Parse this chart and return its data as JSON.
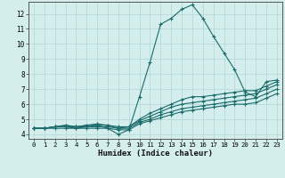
{
  "xlabel": "Humidex (Indice chaleur)",
  "xlim": [
    -0.5,
    23.5
  ],
  "ylim": [
    3.7,
    12.8
  ],
  "xticks": [
    0,
    1,
    2,
    3,
    4,
    5,
    6,
    7,
    8,
    9,
    10,
    11,
    12,
    13,
    14,
    15,
    16,
    17,
    18,
    19,
    20,
    21,
    22,
    23
  ],
  "yticks": [
    4,
    5,
    6,
    7,
    8,
    9,
    10,
    11,
    12
  ],
  "bg_color": "#d4eeed",
  "grid_color": "#b8d8d8",
  "line_color": "#1a6b6b",
  "curves": [
    {
      "x": [
        0,
        1,
        2,
        3,
        4,
        5,
        6,
        7,
        8,
        9,
        10,
        11,
        12,
        13,
        14,
        15,
        16,
        17,
        18,
        19,
        20,
        21,
        22,
        23
      ],
      "y": [
        4.4,
        4.4,
        4.5,
        4.6,
        4.5,
        4.6,
        4.6,
        4.4,
        4.0,
        4.3,
        6.5,
        8.8,
        11.3,
        11.7,
        12.3,
        12.6,
        11.7,
        10.5,
        9.4,
        8.3,
        6.8,
        6.5,
        7.5,
        7.6
      ]
    },
    {
      "x": [
        0,
        1,
        2,
        3,
        4,
        5,
        6,
        7,
        8,
        9,
        10,
        11,
        12,
        13,
        14,
        15,
        16,
        17,
        18,
        19,
        20,
        21,
        22,
        23
      ],
      "y": [
        4.4,
        4.4,
        4.5,
        4.6,
        4.5,
        4.6,
        4.7,
        4.6,
        4.4,
        4.5,
        5.0,
        5.4,
        5.7,
        6.0,
        6.3,
        6.5,
        6.5,
        6.6,
        6.7,
        6.8,
        6.9,
        6.9,
        7.2,
        7.5
      ]
    },
    {
      "x": [
        0,
        1,
        2,
        3,
        4,
        5,
        6,
        7,
        8,
        9,
        10,
        11,
        12,
        13,
        14,
        15,
        16,
        17,
        18,
        19,
        20,
        21,
        22,
        23
      ],
      "y": [
        4.4,
        4.4,
        4.5,
        4.5,
        4.5,
        4.5,
        4.6,
        4.6,
        4.5,
        4.5,
        4.9,
        5.2,
        5.5,
        5.8,
        6.0,
        6.1,
        6.2,
        6.3,
        6.4,
        6.5,
        6.6,
        6.7,
        7.0,
        7.3
      ]
    },
    {
      "x": [
        0,
        1,
        2,
        3,
        4,
        5,
        6,
        7,
        8,
        9,
        10,
        11,
        12,
        13,
        14,
        15,
        16,
        17,
        18,
        19,
        20,
        21,
        22,
        23
      ],
      "y": [
        4.4,
        4.4,
        4.5,
        4.5,
        4.4,
        4.5,
        4.5,
        4.5,
        4.4,
        4.4,
        4.8,
        5.0,
        5.3,
        5.5,
        5.7,
        5.8,
        5.9,
        6.0,
        6.1,
        6.2,
        6.3,
        6.4,
        6.7,
        7.0
      ]
    },
    {
      "x": [
        0,
        1,
        2,
        3,
        4,
        5,
        6,
        7,
        8,
        9,
        10,
        11,
        12,
        13,
        14,
        15,
        16,
        17,
        18,
        19,
        20,
        21,
        22,
        23
      ],
      "y": [
        4.4,
        4.4,
        4.4,
        4.4,
        4.4,
        4.4,
        4.4,
        4.4,
        4.3,
        4.3,
        4.7,
        4.9,
        5.1,
        5.3,
        5.5,
        5.6,
        5.7,
        5.8,
        5.9,
        6.0,
        6.0,
        6.1,
        6.4,
        6.7
      ]
    }
  ]
}
